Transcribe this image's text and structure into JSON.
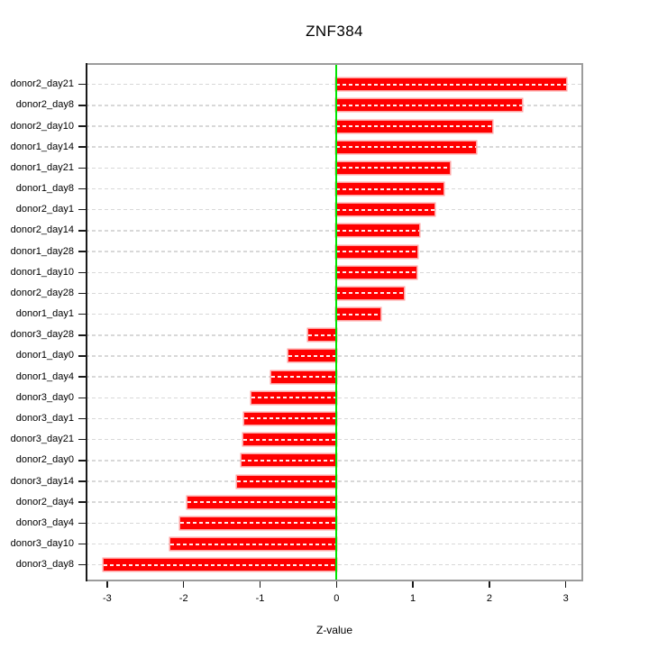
{
  "chart_data": {
    "type": "bar",
    "orientation": "horizontal",
    "title": "ZNF384",
    "xlabel": "Z-value",
    "ylabel": "",
    "xlim": [
      -3.3,
      3.3
    ],
    "x_ticks": [
      -3,
      -2,
      -1,
      0,
      1,
      2,
      3
    ],
    "grid": "dashed-horizontal-per-category",
    "legend": "none",
    "zero_line_x": 0,
    "categories": [
      "donor2_day21",
      "donor2_day8",
      "donor2_day10",
      "donor1_day14",
      "donor1_day21",
      "donor1_day8",
      "donor2_day1",
      "donor2_day14",
      "donor1_day28",
      "donor1_day10",
      "donor2_day28",
      "donor1_day1",
      "donor3_day28",
      "donor1_day0",
      "donor1_day4",
      "donor3_day0",
      "donor3_day1",
      "donor3_day21",
      "donor2_day0",
      "donor3_day14",
      "donor2_day4",
      "donor3_day4",
      "donor3_day10",
      "donor3_day8"
    ],
    "values": [
      3.0,
      2.42,
      2.04,
      1.82,
      1.48,
      1.4,
      1.28,
      1.08,
      1.06,
      1.05,
      0.88,
      0.57,
      -0.37,
      -0.63,
      -0.85,
      -1.11,
      -1.21,
      -1.22,
      -1.24,
      -1.3,
      -1.95,
      -2.04,
      -2.17,
      -3.05
    ],
    "colors": {
      "bar": "#FF0000",
      "bar_border": "#FFA0A0",
      "bar_inner_dash": "rgba(255,255,255,0.92)",
      "zero_line": "#00E400",
      "grid": "#D8D8D8",
      "box": "#9C9C9C",
      "axis": "#1A1A1A",
      "text": "#000000"
    }
  }
}
